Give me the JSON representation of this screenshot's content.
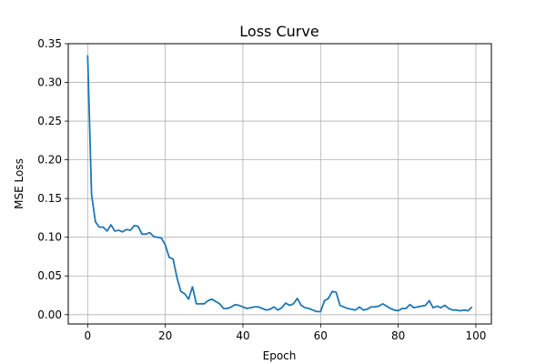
{
  "chart_data": {
    "type": "line",
    "title": "Loss Curve",
    "xlabel": "Epoch",
    "ylabel": "MSE Loss",
    "xlim": [
      -5,
      104
    ],
    "ylim": [
      -0.012,
      0.35
    ],
    "xticks": [
      0,
      20,
      40,
      60,
      80,
      100
    ],
    "xtick_labels": [
      "0",
      "20",
      "40",
      "60",
      "80",
      "100"
    ],
    "yticks": [
      0.0,
      0.05,
      0.1,
      0.15,
      0.2,
      0.25,
      0.3,
      0.35
    ],
    "ytick_labels": [
      "0.00",
      "0.05",
      "0.10",
      "0.15",
      "0.20",
      "0.25",
      "0.30",
      "0.35"
    ],
    "grid": true,
    "series": [
      {
        "color": "#1f77b4",
        "x": [
          0,
          1,
          2,
          3,
          4,
          5,
          6,
          7,
          8,
          9,
          10,
          11,
          12,
          13,
          14,
          15,
          16,
          17,
          18,
          19,
          20,
          21,
          22,
          23,
          24,
          25,
          26,
          27,
          28,
          29,
          30,
          31,
          32,
          33,
          34,
          35,
          36,
          37,
          38,
          39,
          40,
          41,
          42,
          43,
          44,
          45,
          46,
          47,
          48,
          49,
          50,
          51,
          52,
          53,
          54,
          55,
          56,
          57,
          58,
          59,
          60,
          61,
          62,
          63,
          64,
          65,
          66,
          67,
          68,
          69,
          70,
          71,
          72,
          73,
          74,
          75,
          76,
          77,
          78,
          79,
          80,
          81,
          82,
          83,
          84,
          85,
          86,
          87,
          88,
          89,
          90,
          91,
          92,
          93,
          94,
          95,
          96,
          97,
          98,
          99
        ],
        "y": [
          0.335,
          0.155,
          0.12,
          0.113,
          0.113,
          0.108,
          0.116,
          0.108,
          0.109,
          0.107,
          0.11,
          0.109,
          0.115,
          0.114,
          0.104,
          0.104,
          0.106,
          0.101,
          0.1,
          0.099,
          0.09,
          0.074,
          0.072,
          0.048,
          0.03,
          0.027,
          0.02,
          0.036,
          0.014,
          0.014,
          0.014,
          0.018,
          0.02,
          0.017,
          0.014,
          0.008,
          0.008,
          0.01,
          0.013,
          0.012,
          0.01,
          0.008,
          0.009,
          0.01,
          0.01,
          0.008,
          0.006,
          0.007,
          0.01,
          0.006,
          0.009,
          0.015,
          0.012,
          0.014,
          0.021,
          0.012,
          0.009,
          0.008,
          0.006,
          0.004,
          0.004,
          0.018,
          0.021,
          0.03,
          0.029,
          0.012,
          0.01,
          0.008,
          0.007,
          0.006,
          0.01,
          0.006,
          0.007,
          0.01,
          0.01,
          0.011,
          0.014,
          0.011,
          0.008,
          0.006,
          0.005,
          0.008,
          0.008,
          0.013,
          0.009,
          0.01,
          0.011,
          0.012,
          0.018,
          0.009,
          0.011,
          0.009,
          0.012,
          0.008,
          0.006,
          0.006,
          0.005,
          0.006,
          0.005,
          0.01
        ]
      }
    ]
  }
}
